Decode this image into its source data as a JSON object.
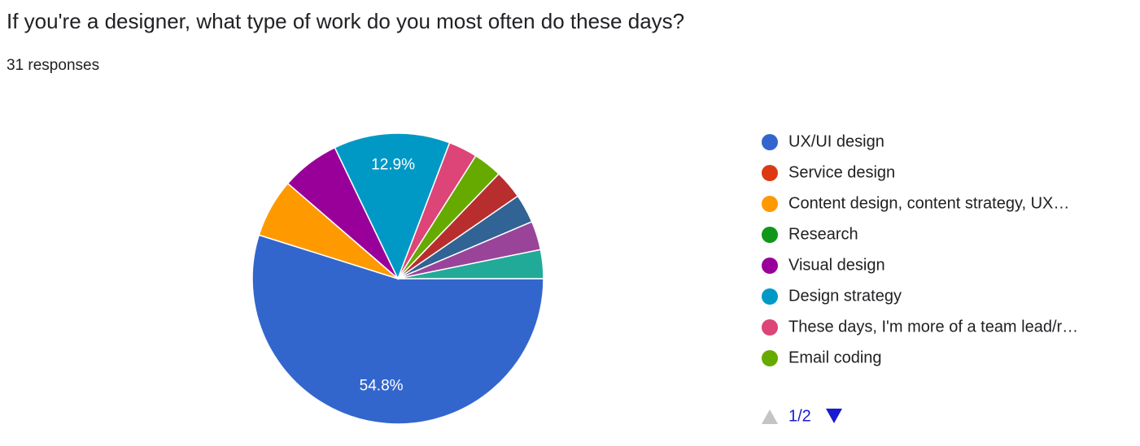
{
  "chart_data": {
    "type": "pie",
    "title": "If you're a designer, what type of work do you most often do these days?",
    "subtitle": "31 responses",
    "categories": [
      "UX/UI design",
      "Service design",
      "Content design, content strategy, UX…",
      "Research",
      "Visual design",
      "Design strategy",
      "These days, I'm more of a team lead/r…",
      "Email coding",
      null,
      null,
      null,
      null
    ],
    "values": [
      54.8,
      0,
      6.5,
      0,
      6.5,
      12.9,
      3.2,
      3.2,
      3.2,
      3.2,
      3.2,
      3.2
    ],
    "value_labels": [
      "54.8%",
      null,
      null,
      null,
      null,
      "12.9%",
      null,
      null,
      null,
      null,
      null,
      null
    ],
    "colors": [
      "#3366cc",
      "#dc3912",
      "#ff9900",
      "#109618",
      "#990099",
      "#0099c6",
      "#dd4477",
      "#66aa00",
      "#b82e2e",
      "#316395",
      "#994499",
      "#22aa99"
    ],
    "legend_page": "1/2"
  }
}
